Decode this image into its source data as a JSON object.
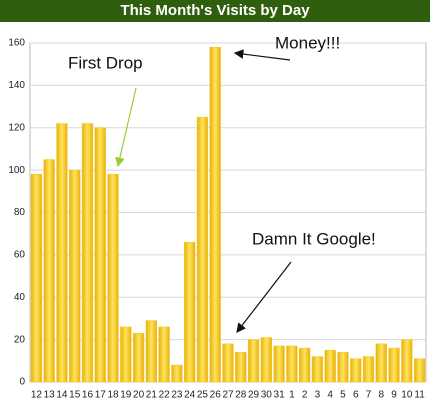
{
  "chart_data": {
    "type": "bar",
    "title": "This Month's Visits by Day",
    "categories": [
      "12",
      "13",
      "14",
      "15",
      "16",
      "17",
      "18",
      "19",
      "20",
      "21",
      "22",
      "23",
      "24",
      "25",
      "26",
      "27",
      "28",
      "29",
      "30",
      "31",
      "1",
      "2",
      "3",
      "4",
      "5",
      "6",
      "7",
      "8",
      "9",
      "10",
      "11"
    ],
    "values": [
      98,
      105,
      122,
      100,
      122,
      120,
      98,
      26,
      23,
      29,
      26,
      8,
      66,
      125,
      158,
      18,
      14,
      20,
      21,
      17,
      17,
      16,
      12,
      15,
      14,
      11,
      12,
      18,
      16,
      20,
      11
    ],
    "color": "#f5c518",
    "ylim": [
      0,
      160
    ],
    "yticks": [
      0,
      20,
      40,
      60,
      80,
      100,
      120,
      140,
      160
    ],
    "grid": true,
    "annotations": [
      "First Drop",
      "Money!!!",
      "Damn It Google!"
    ]
  }
}
